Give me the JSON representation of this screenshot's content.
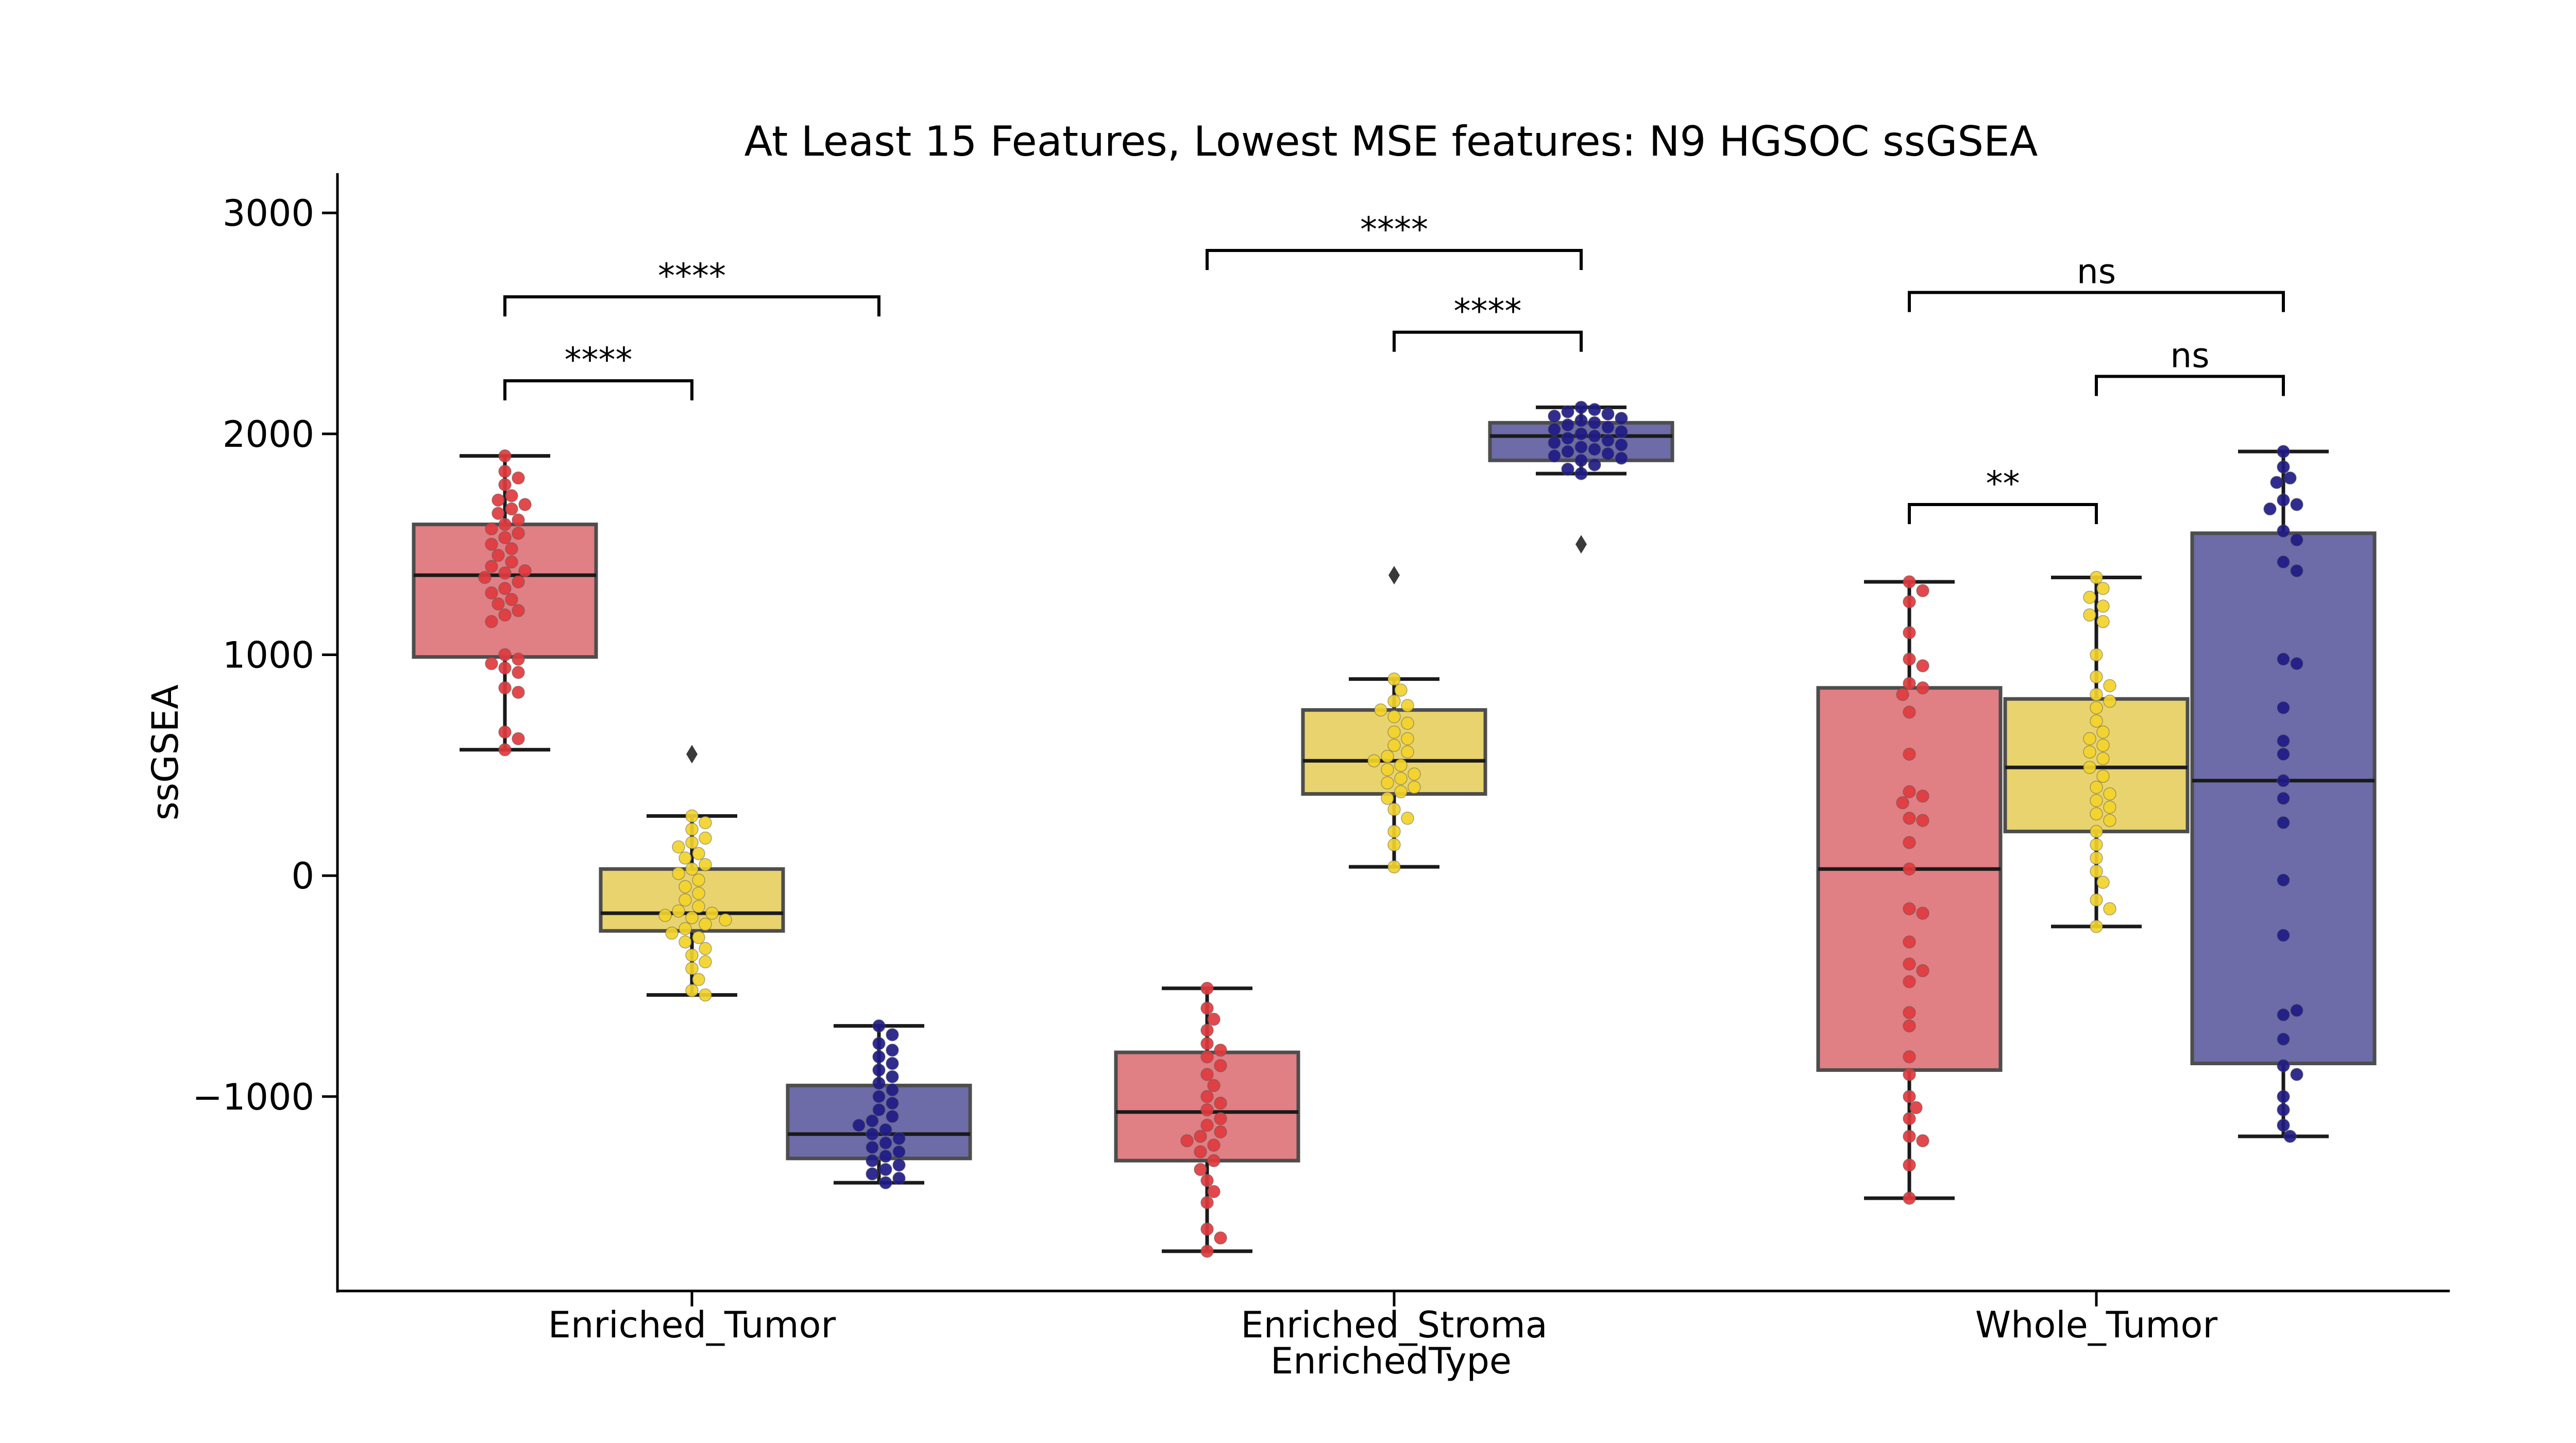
{
  "chart_data": {
    "type": "box",
    "title": "At Least 15 Features, Lowest MSE features: N9 HGSOC ssGSEA",
    "xlabel": "EnrichedType",
    "ylabel": "ssGSEA",
    "categories": [
      "Enriched_Tumor",
      "Enriched_Stroma",
      "Whole_Tumor"
    ],
    "ylim": [
      -1880,
      3180
    ],
    "yticks": [
      -1000,
      0,
      1000,
      2000,
      3000
    ],
    "ytick_labels": [
      "−1000",
      "0",
      "1000",
      "2000",
      "3000"
    ],
    "colors": {
      "red_box": "#e07f84",
      "red_point": "#e03a3e",
      "yellow_box": "#e8d36e",
      "yellow_point": "#f2d22a",
      "blue_box": "#6d6ca8",
      "blue_point": "#1f1b86"
    },
    "series": [
      {
        "box_color": "#e07f84",
        "point_color": "#e03a3e",
        "boxes": [
          {
            "category": "Enriched_Tumor",
            "whisker_low": 570,
            "q1": 990,
            "median": 1360,
            "q3": 1590,
            "whisker_high": 1900,
            "outliers": [],
            "points": [
              1900,
              1830,
              1800,
              1770,
              1720,
              1700,
              1680,
              1660,
              1640,
              1610,
              1590,
              1570,
              1550,
              1530,
              1500,
              1480,
              1450,
              1420,
              1400,
              1380,
              1370,
              1350,
              1330,
              1300,
              1280,
              1250,
              1230,
              1200,
              1180,
              1150,
              1000,
              980,
              960,
              940,
              920,
              850,
              830,
              650,
              620,
              570
            ]
          },
          {
            "category": "Enriched_Stroma",
            "whisker_low": -1700,
            "q1": -1290,
            "median": -1070,
            "q3": -800,
            "whisker_high": -510,
            "outliers": [],
            "points": [
              -510,
              -600,
              -650,
              -700,
              -760,
              -790,
              -820,
              -860,
              -900,
              -950,
              -1000,
              -1030,
              -1060,
              -1100,
              -1130,
              -1160,
              -1180,
              -1200,
              -1220,
              -1250,
              -1290,
              -1330,
              -1380,
              -1430,
              -1480,
              -1600,
              -1640,
              -1700
            ]
          },
          {
            "category": "Whole_Tumor",
            "whisker_low": -1460,
            "q1": -880,
            "median": 30,
            "q3": 850,
            "whisker_high": 1330,
            "outliers": [],
            "points": [
              1330,
              1290,
              1240,
              1100,
              980,
              950,
              870,
              850,
              820,
              740,
              550,
              380,
              360,
              330,
              260,
              250,
              150,
              30,
              -150,
              -170,
              -300,
              -400,
              -430,
              -480,
              -620,
              -680,
              -820,
              -900,
              -1000,
              -1050,
              -1100,
              -1180,
              -1200,
              -1310,
              -1460
            ]
          }
        ]
      },
      {
        "box_color": "#e8d36e",
        "point_color": "#f2d22a",
        "boxes": [
          {
            "category": "Enriched_Tumor",
            "whisker_low": -540,
            "q1": -250,
            "median": -170,
            "q3": 30,
            "whisker_high": 270,
            "outliers": [
              550
            ],
            "points": [
              270,
              240,
              210,
              170,
              150,
              130,
              100,
              80,
              50,
              30,
              10,
              -20,
              -50,
              -80,
              -110,
              -140,
              -160,
              -170,
              -180,
              -190,
              -200,
              -220,
              -240,
              -260,
              -280,
              -300,
              -330,
              -360,
              -390,
              -420,
              -470,
              -520,
              -540
            ]
          },
          {
            "category": "Enriched_Stroma",
            "whisker_low": 40,
            "q1": 370,
            "median": 520,
            "q3": 750,
            "whisker_high": 890,
            "outliers": [
              1360
            ],
            "points": [
              890,
              840,
              790,
              770,
              750,
              720,
              690,
              650,
              620,
              590,
              560,
              540,
              520,
              500,
              480,
              460,
              440,
              420,
              400,
              380,
              350,
              300,
              260,
              200,
              140,
              40
            ]
          },
          {
            "category": "Whole_Tumor",
            "whisker_low": -230,
            "q1": 200,
            "median": 490,
            "q3": 800,
            "whisker_high": 1350,
            "outliers": [],
            "points": [
              1350,
              1300,
              1260,
              1220,
              1180,
              1150,
              1000,
              900,
              860,
              820,
              790,
              760,
              700,
              650,
              620,
              590,
              560,
              530,
              490,
              450,
              400,
              370,
              340,
              310,
              280,
              250,
              200,
              140,
              80,
              20,
              -30,
              -110,
              -150,
              -230
            ]
          }
        ]
      },
      {
        "box_color": "#6d6ca8",
        "point_color": "#1f1b86",
        "boxes": [
          {
            "category": "Enriched_Tumor",
            "whisker_low": -1390,
            "q1": -1280,
            "median": -1170,
            "q3": -950,
            "whisker_high": -680,
            "outliers": [],
            "points": [
              -680,
              -720,
              -760,
              -790,
              -820,
              -850,
              -880,
              -910,
              -940,
              -970,
              -1000,
              -1030,
              -1060,
              -1090,
              -1110,
              -1130,
              -1150,
              -1170,
              -1190,
              -1210,
              -1230,
              -1250,
              -1270,
              -1290,
              -1310,
              -1330,
              -1350,
              -1370,
              -1390
            ]
          },
          {
            "category": "Enriched_Stroma",
            "whisker_low": 1820,
            "q1": 1880,
            "median": 1990,
            "q3": 2050,
            "whisker_high": 2120,
            "outliers": [
              1500
            ],
            "points": [
              2120,
              2110,
              2100,
              2090,
              2080,
              2070,
              2060,
              2050,
              2040,
              2030,
              2020,
              2010,
              2000,
              1990,
              1980,
              1970,
              1960,
              1950,
              1940,
              1930,
              1920,
              1910,
              1900,
              1890,
              1880,
              1860,
              1840,
              1820
            ]
          },
          {
            "category": "Whole_Tumor",
            "whisker_low": -1180,
            "q1": -850,
            "median": 430,
            "q3": 1550,
            "whisker_high": 1920,
            "outliers": [],
            "points": [
              1920,
              1850,
              1800,
              1780,
              1700,
              1680,
              1660,
              1560,
              1520,
              1420,
              1380,
              980,
              960,
              760,
              610,
              550,
              430,
              350,
              240,
              -20,
              -270,
              -630,
              -610,
              -740,
              -860,
              -900,
              -1000,
              -1060,
              -1130,
              -1180
            ]
          }
        ]
      }
    ],
    "significance": [
      {
        "x1_group": 0,
        "x1_series": 0,
        "x2_group": 0,
        "x2_series": 1,
        "y": 2240,
        "label": "****"
      },
      {
        "x1_group": 0,
        "x1_series": 0,
        "x2_group": 0,
        "x2_series": 2,
        "y": 2620,
        "label": "****"
      },
      {
        "x1_group": 1,
        "x1_series": 1,
        "x2_group": 1,
        "x2_series": 2,
        "y": 2460,
        "label": "****"
      },
      {
        "x1_group": 1,
        "x1_series": 0,
        "x2_group": 1,
        "x2_series": 2,
        "y": 2830,
        "label": "****"
      },
      {
        "x1_group": 2,
        "x1_series": 0,
        "x2_group": 2,
        "x2_series": 1,
        "y": 1680,
        "label": "**"
      },
      {
        "x1_group": 2,
        "x1_series": 1,
        "x2_group": 2,
        "x2_series": 2,
        "y": 2260,
        "label": "ns"
      },
      {
        "x1_group": 2,
        "x1_series": 0,
        "x2_group": 2,
        "x2_series": 2,
        "y": 2640,
        "label": "ns"
      }
    ]
  }
}
